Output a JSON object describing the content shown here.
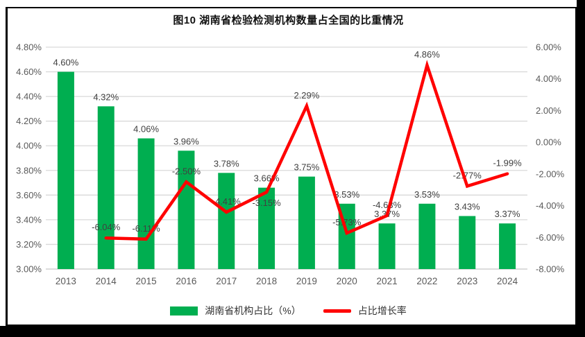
{
  "chart_data": {
    "type": "bar+line",
    "title": "图10  湖南省检验检测机构数量占全国的比重情况",
    "categories": [
      "2013",
      "2014",
      "2015",
      "2016",
      "2017",
      "2018",
      "2019",
      "2020",
      "2021",
      "2022",
      "2023",
      "2024"
    ],
    "series": [
      {
        "name": "湖南省机构占比（%）",
        "type": "bar",
        "axis": "left",
        "color": "#00AE50",
        "values": [
          4.6,
          4.32,
          4.06,
          3.96,
          3.78,
          3.66,
          3.75,
          3.53,
          3.37,
          3.53,
          3.43,
          3.37
        ],
        "labels": [
          "4.60%",
          "4.32%",
          "4.06%",
          "3.96%",
          "3.78%",
          "3.66%",
          "3.75%",
          "3.53%",
          "3.37%",
          "3.53%",
          "3.43%",
          "3.37%"
        ]
      },
      {
        "name": "占比增长率",
        "type": "line",
        "axis": "right",
        "color": "#FF0000",
        "values": [
          null,
          -6.04,
          -6.11,
          -2.5,
          -4.41,
          -3.15,
          2.29,
          -5.73,
          -4.63,
          4.86,
          -2.77,
          -1.99
        ],
        "labels": [
          "",
          "-6.04%",
          "-6.11%",
          "-2.50%",
          "-4.41%",
          "-3.15%",
          "2.29%",
          "-5.73%",
          "-4.63%",
          "4.86%",
          "-2.77%",
          "-1.99%"
        ]
      }
    ],
    "left_axis": {
      "min": 3.0,
      "max": 4.8,
      "step": 0.2,
      "ticks": [
        "4.80%",
        "4.60%",
        "4.40%",
        "4.20%",
        "4.00%",
        "3.80%",
        "3.60%",
        "3.40%",
        "3.20%",
        "3.00%"
      ]
    },
    "right_axis": {
      "min": -8.0,
      "max": 6.0,
      "step": 2.0,
      "ticks": [
        "6.00%",
        "4.00%",
        "2.00%",
        "0.00%",
        "-2.00%",
        "-4.00%",
        "-6.00%",
        "-8.00%"
      ]
    },
    "legend_position": "bottom",
    "grid": "horizontal",
    "colors": {
      "gridline": "#D9D9D9",
      "axis_text": "#595959",
      "data_label": "#404040"
    }
  }
}
